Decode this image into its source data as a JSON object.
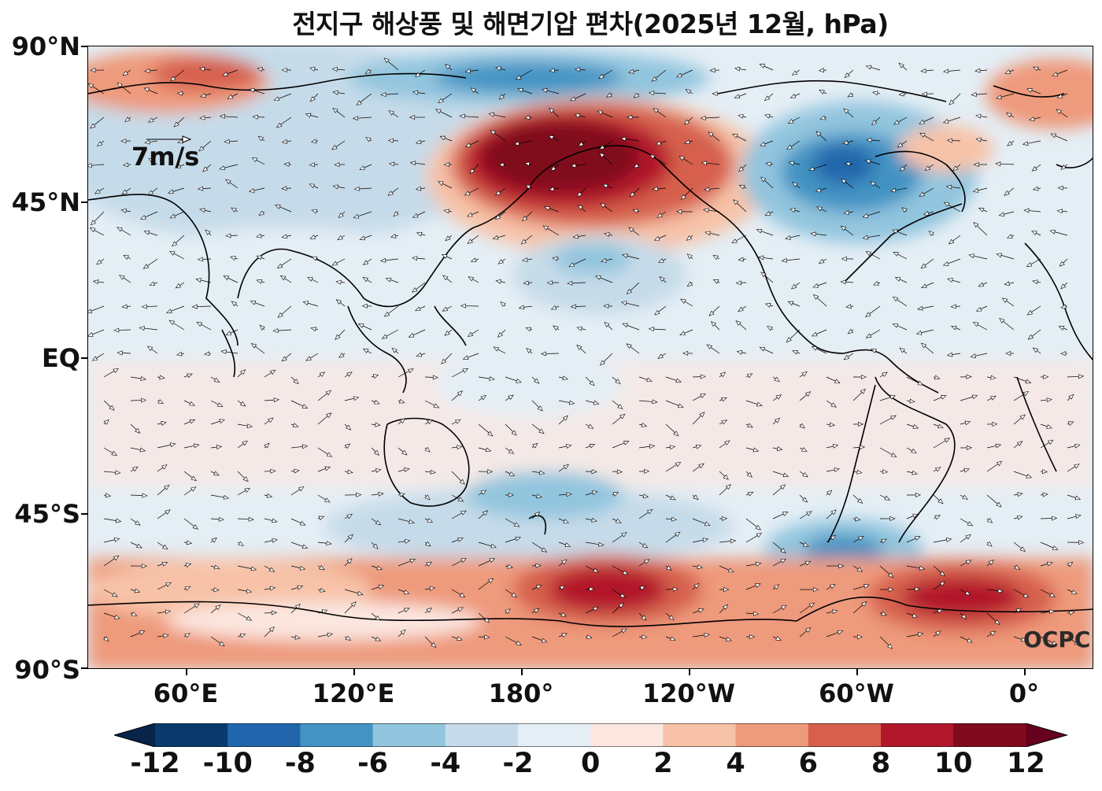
{
  "title": "전지구 해상풍 및 해면기압 편차(2025년 12월, hPa)",
  "lat_labels": [
    "90°N",
    "45°N",
    "EQ",
    "45°S",
    "90°S"
  ],
  "lon_labels": [
    "60°E",
    "120°E",
    "180°",
    "120°W",
    "60°W",
    "0°"
  ],
  "reference_vector": "7m/s",
  "watermark": "OCPC",
  "colorbar": {
    "labels": [
      "-12",
      "-10",
      "-8",
      "-6",
      "-4",
      "-2",
      "0",
      "2",
      "4",
      "6",
      "8",
      "10",
      "12"
    ],
    "colors": [
      "#0a3a6e",
      "#2166ac",
      "#4393c3",
      "#92c5de",
      "#c6dbe9",
      "#e4eef5",
      "#fbe7e0",
      "#f7c2a7",
      "#ee9a7c",
      "#d6604d",
      "#b2182b",
      "#800a1e"
    ],
    "extend_low": "#08244a",
    "extend_high": "#67001f"
  },
  "map_colors": {
    "ocean_base": "#e2ecf4",
    "land_line": "#000000"
  }
}
